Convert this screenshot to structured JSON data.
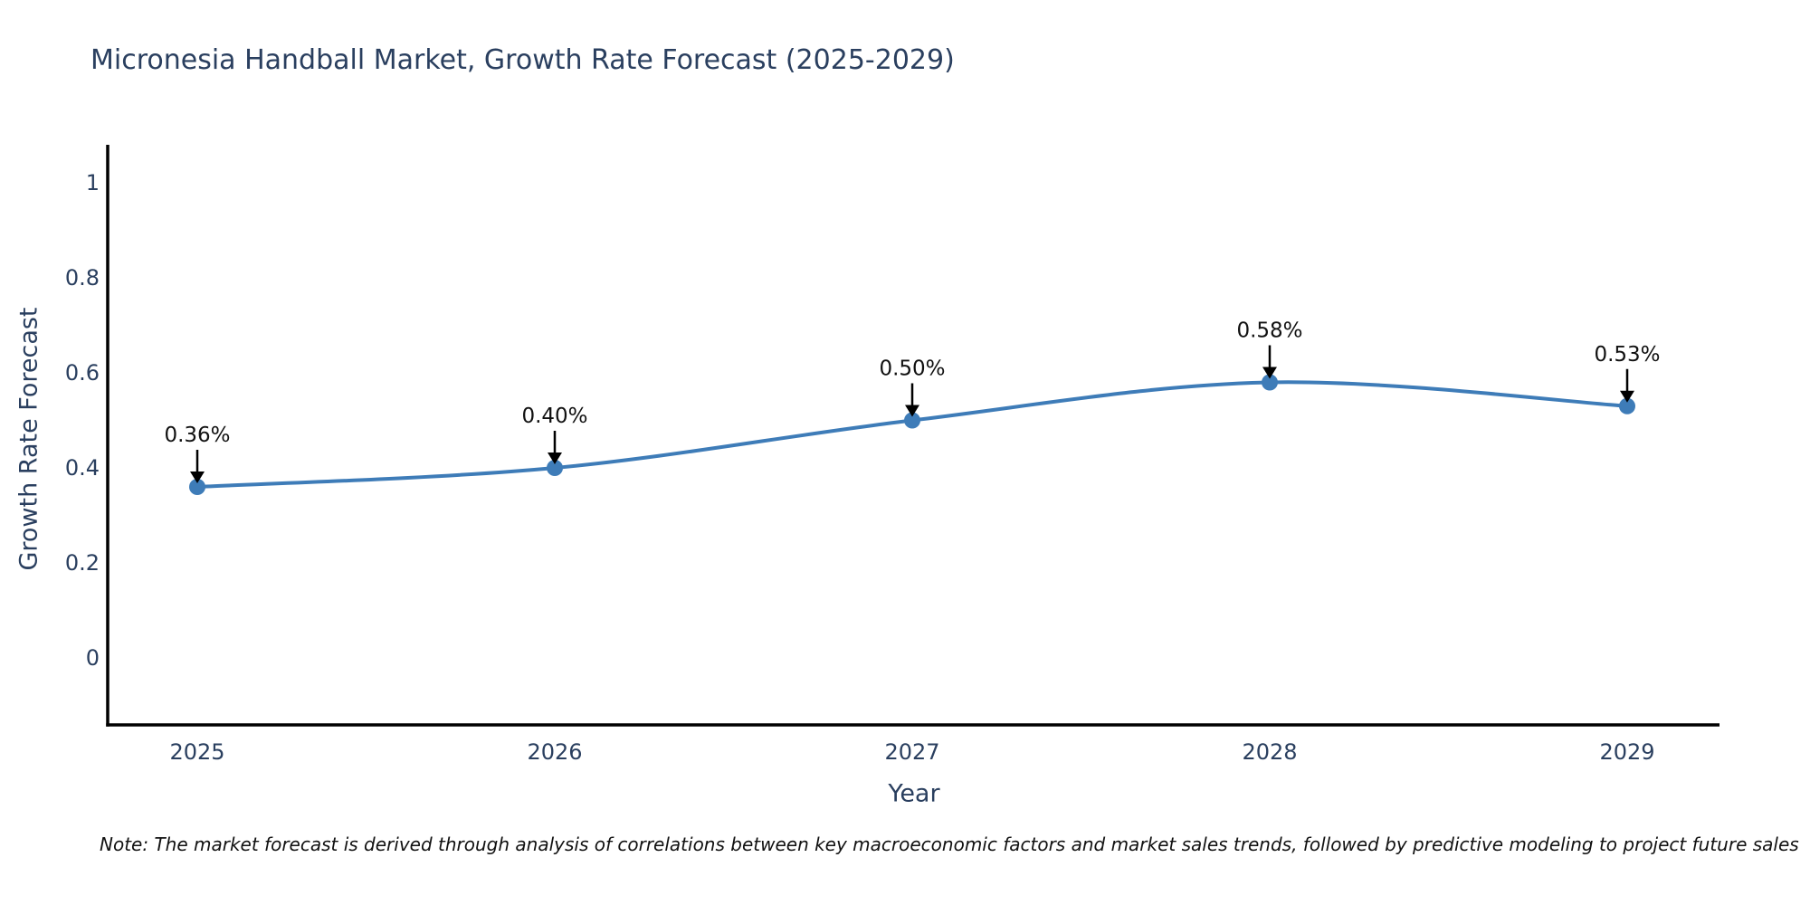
{
  "title": "Micronesia Handball Market, Growth Rate Forecast (2025-2029)",
  "note": "Note: The market forecast is derived through analysis of correlations between key macroeconomic factors and market sales trends, followed by predictive modeling to project future sales",
  "chart_data": {
    "type": "line",
    "title": "Micronesia Handball Market, Growth Rate Forecast (2025-2029)",
    "xlabel": "Year",
    "ylabel": "Growth Rate Forecast",
    "x": [
      2025,
      2026,
      2027,
      2028,
      2029
    ],
    "series": [
      {
        "name": "Growth Rate Forecast",
        "values": [
          0.36,
          0.4,
          0.5,
          0.58,
          0.53
        ]
      }
    ],
    "point_labels": [
      "0.36%",
      "0.40%",
      "0.50%",
      "0.58%",
      "0.53%"
    ],
    "y_ticks": [
      0,
      0.2,
      0.4,
      0.6,
      0.8,
      1
    ],
    "ylim": [
      -0.14,
      1.08
    ],
    "curve": "spline",
    "grid": false,
    "legend": false,
    "marker_size": 9,
    "annotations": "black arrows pointing down to each data point"
  },
  "colors": {
    "background": "#ffffff",
    "title": "#2a3f5f",
    "tick": "#2a3f5f",
    "annotation": "#111111",
    "axis": "#000000",
    "line": "#3e7cb8",
    "marker": "#3e7cb8",
    "note": "#111111"
  }
}
